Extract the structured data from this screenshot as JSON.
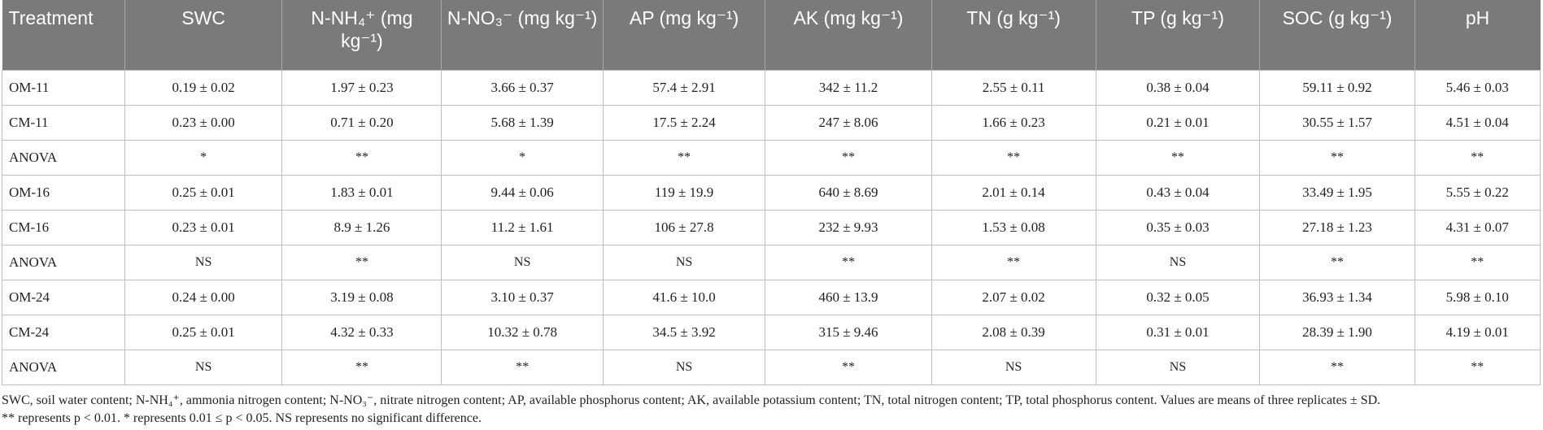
{
  "table": {
    "headers": [
      "Treatment",
      "SWC",
      "N-NH₄⁺ (mg kg⁻¹)",
      "N-NO₃⁻ (mg kg⁻¹)",
      "AP (mg kg⁻¹)",
      "AK (mg kg⁻¹)",
      "TN (g kg⁻¹)",
      "TP (g kg⁻¹)",
      "SOC (g kg⁻¹)",
      "pH"
    ],
    "rows": [
      [
        "OM-11",
        "0.19 ± 0.02",
        "1.97 ± 0.23",
        "3.66 ± 0.37",
        "57.4 ± 2.91",
        "342 ± 11.2",
        "2.55 ± 0.11",
        "0.38 ± 0.04",
        "59.11 ± 0.92",
        "5.46 ± 0.03"
      ],
      [
        "CM-11",
        "0.23 ± 0.00",
        "0.71 ± 0.20",
        "5.68 ± 1.39",
        "17.5 ± 2.24",
        "247 ± 8.06",
        "1.66 ± 0.23",
        "0.21 ± 0.01",
        "30.55 ± 1.57",
        "4.51 ± 0.04"
      ],
      [
        "ANOVA",
        "*",
        "**",
        "*",
        "**",
        "**",
        "**",
        "**",
        "**",
        "**"
      ],
      [
        "OM-16",
        "0.25 ± 0.01",
        "1.83 ± 0.01",
        "9.44 ± 0.06",
        "119 ± 19.9",
        "640 ± 8.69",
        "2.01 ± 0.14",
        "0.43 ± 0.04",
        "33.49 ± 1.95",
        "5.55 ± 0.22"
      ],
      [
        "CM-16",
        "0.23 ± 0.01",
        "8.9 ± 1.26",
        "11.2 ± 1.61",
        "106 ± 27.8",
        "232 ± 9.93",
        "1.53 ± 0.08",
        "0.35 ± 0.03",
        "27.18 ± 1.23",
        "4.31 ± 0.07"
      ],
      [
        "ANOVA",
        "NS",
        "**",
        "NS",
        "NS",
        "**",
        "**",
        "NS",
        "**",
        "**"
      ],
      [
        "OM-24",
        "0.24 ± 0.00",
        "3.19 ± 0.08",
        "3.10 ± 0.37",
        "41.6 ± 10.0",
        "460 ± 13.9",
        "2.07 ± 0.02",
        "0.32 ± 0.05",
        "36.93 ± 1.34",
        "5.98 ± 0.10"
      ],
      [
        "CM-24",
        "0.25 ± 0.01",
        "4.32 ± 0.33",
        "10.32 ± 0.78",
        "34.5 ± 3.92",
        "315 ± 9.46",
        "2.08 ± 0.39",
        "0.31 ± 0.01",
        "28.39 ± 1.90",
        "4.19 ± 0.01"
      ],
      [
        "ANOVA",
        "NS",
        "**",
        "**",
        "NS",
        "**",
        "NS",
        "NS",
        "**",
        "**"
      ]
    ]
  },
  "footnotes": [
    "SWC, soil water content; N-NH₄⁺, ammonia nitrogen content; N-NO₃⁻, nitrate nitrogen content; AP, available phosphorus content; AK, available potassium content; TN, total nitrogen content; TP, total phosphorus content. Values are means of three replicates ± SD.",
    "** represents p < 0.01. * represents 0.01 ≤ p < 0.05. NS represents no significant difference."
  ],
  "colors": {
    "header_bg": "#7a7a7a",
    "header_text": "#ffffff",
    "grid": "#bfbfbf"
  }
}
